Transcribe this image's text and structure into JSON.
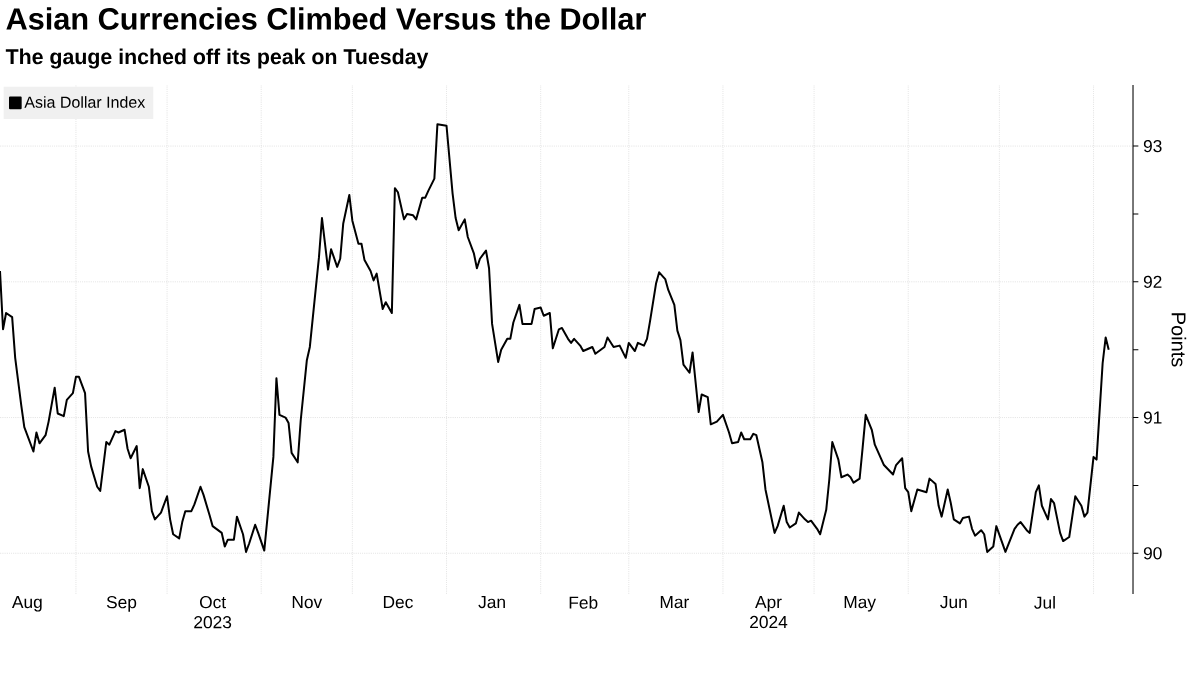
{
  "chart_data": {
    "type": "line",
    "title": "Asian Currencies Climbed Versus the Dollar",
    "subtitle": "The gauge inched off its peak on Tuesday",
    "ylabel": "Points",
    "x": [
      "2023-08-07",
      "2023-08-08",
      "2023-08-09",
      "2023-08-11",
      "2023-08-12",
      "2023-08-14",
      "2023-08-15",
      "2023-08-18",
      "2023-08-19",
      "2023-08-20",
      "2023-08-22",
      "2023-08-23",
      "2023-08-25",
      "2023-08-26",
      "2023-08-28",
      "2023-08-29",
      "2023-08-31",
      "2023-09-01",
      "2023-09-02",
      "2023-09-04",
      "2023-09-05",
      "2023-09-06",
      "2023-09-08",
      "2023-09-09",
      "2023-09-11",
      "2023-09-12",
      "2023-09-14",
      "2023-09-15",
      "2023-09-17",
      "2023-09-18",
      "2023-09-19",
      "2023-09-21",
      "2023-09-22",
      "2023-09-23",
      "2023-09-25",
      "2023-09-26",
      "2023-09-27",
      "2023-09-29",
      "2023-10-01",
      "2023-10-02",
      "2023-10-03",
      "2023-10-05",
      "2023-10-06",
      "2023-10-07",
      "2023-10-09",
      "2023-10-10",
      "2023-10-12",
      "2023-10-13",
      "2023-10-15",
      "2023-10-16",
      "2023-10-19",
      "2023-10-20",
      "2023-10-21",
      "2023-10-23",
      "2023-10-24",
      "2023-10-26",
      "2023-10-27",
      "2023-10-28",
      "2023-10-30",
      "2023-10-31",
      "2023-11-02",
      "2023-11-05",
      "2023-11-06",
      "2023-11-07",
      "2023-11-09",
      "2023-11-10",
      "2023-11-11",
      "2023-11-13",
      "2023-11-14",
      "2023-11-16",
      "2023-11-17",
      "2023-11-18",
      "2023-11-20",
      "2023-11-21",
      "2023-11-23",
      "2023-11-24",
      "2023-11-26",
      "2023-11-27",
      "2023-11-28",
      "2023-11-30",
      "2023-12-01",
      "2023-12-03",
      "2023-12-04",
      "2023-12-05",
      "2023-12-07",
      "2023-12-08",
      "2023-12-09",
      "2023-12-11",
      "2023-12-12",
      "2023-12-14",
      "2023-12-15",
      "2023-12-16",
      "2023-12-18",
      "2023-12-19",
      "2023-12-21",
      "2023-12-22",
      "2023-12-24",
      "2023-12-25",
      "2023-12-26",
      "2023-12-28",
      "2023-12-29",
      "2024-01-01",
      "2024-01-03",
      "2024-01-04",
      "2024-01-05",
      "2024-01-07",
      "2024-01-08",
      "2024-01-10",
      "2024-01-11",
      "2024-01-12",
      "2024-01-14",
      "2024-01-15",
      "2024-01-16",
      "2024-01-18",
      "2024-01-19",
      "2024-01-21",
      "2024-01-22",
      "2024-01-23",
      "2024-01-25",
      "2024-01-26",
      "2024-01-29",
      "2024-01-30",
      "2024-02-01",
      "2024-02-02",
      "2024-02-04",
      "2024-02-05",
      "2024-02-07",
      "2024-02-08",
      "2024-02-10",
      "2024-02-11",
      "2024-02-12",
      "2024-02-14",
      "2024-02-15",
      "2024-02-18",
      "2024-02-19",
      "2024-02-22",
      "2024-02-23",
      "2024-02-25",
      "2024-02-27",
      "2024-02-29",
      "2024-03-01",
      "2024-03-03",
      "2024-03-04",
      "2024-03-06",
      "2024-03-07",
      "2024-03-08",
      "2024-03-10",
      "2024-03-11",
      "2024-03-13",
      "2024-03-14",
      "2024-03-16",
      "2024-03-17",
      "2024-03-18",
      "2024-03-19",
      "2024-03-21",
      "2024-03-22",
      "2024-03-24",
      "2024-03-25",
      "2024-03-27",
      "2024-03-28",
      "2024-03-30",
      "2024-04-01",
      "2024-04-03",
      "2024-04-04",
      "2024-04-06",
      "2024-04-07",
      "2024-04-08",
      "2024-04-10",
      "2024-04-11",
      "2024-04-12",
      "2024-04-14",
      "2024-04-15",
      "2024-04-18",
      "2024-04-19",
      "2024-04-21",
      "2024-04-22",
      "2024-04-23",
      "2024-04-25",
      "2024-04-26",
      "2024-04-28",
      "2024-04-29",
      "2024-04-30",
      "2024-05-02",
      "2024-05-03",
      "2024-05-05",
      "2024-05-06",
      "2024-05-07",
      "2024-05-09",
      "2024-05-10",
      "2024-05-12",
      "2024-05-13",
      "2024-05-14",
      "2024-05-16",
      "2024-05-17",
      "2024-05-18",
      "2024-05-20",
      "2024-05-21",
      "2024-05-23",
      "2024-05-24",
      "2024-05-27",
      "2024-05-28",
      "2024-05-30",
      "2024-05-31",
      "2024-06-01",
      "2024-06-02",
      "2024-06-04",
      "2024-06-07",
      "2024-06-08",
      "2024-06-10",
      "2024-06-11",
      "2024-06-12",
      "2024-06-14",
      "2024-06-15",
      "2024-06-16",
      "2024-06-18",
      "2024-06-19",
      "2024-06-21",
      "2024-06-22",
      "2024-06-23",
      "2024-06-25",
      "2024-06-26",
      "2024-06-27",
      "2024-06-29",
      "2024-06-30",
      "2024-07-03",
      "2024-07-06",
      "2024-07-07",
      "2024-07-08",
      "2024-07-10",
      "2024-07-11",
      "2024-07-13",
      "2024-07-14",
      "2024-07-15",
      "2024-07-17",
      "2024-07-18",
      "2024-07-19",
      "2024-07-21",
      "2024-07-22",
      "2024-07-24",
      "2024-07-25",
      "2024-07-26",
      "2024-07-28",
      "2024-07-29",
      "2024-07-30",
      "2024-08-01",
      "2024-08-02",
      "2024-08-04",
      "2024-08-05",
      "2024-08-06"
    ],
    "series": [
      {
        "name": "Asia Dollar Index",
        "color": "#000000",
        "values": [
          92.08,
          91.65,
          91.77,
          91.74,
          91.44,
          91.09,
          90.93,
          90.75,
          90.89,
          90.81,
          90.87,
          90.97,
          91.22,
          91.03,
          91.01,
          91.13,
          91.18,
          91.3,
          91.3,
          91.18,
          90.75,
          90.64,
          90.49,
          90.46,
          90.82,
          90.8,
          90.9,
          90.89,
          90.91,
          90.77,
          90.7,
          90.79,
          90.48,
          90.62,
          90.49,
          90.31,
          90.25,
          90.3,
          90.42,
          90.25,
          90.14,
          90.11,
          90.23,
          90.31,
          90.31,
          90.36,
          90.49,
          90.43,
          90.28,
          90.2,
          90.15,
          90.05,
          90.1,
          90.1,
          90.27,
          90.14,
          90.01,
          90.07,
          90.21,
          90.15,
          90.02,
          90.71,
          91.29,
          91.02,
          91.0,
          90.96,
          90.74,
          90.67,
          90.98,
          91.42,
          91.52,
          91.74,
          92.18,
          92.47,
          92.09,
          92.24,
          92.11,
          92.17,
          92.43,
          92.64,
          92.45,
          92.28,
          92.28,
          92.16,
          92.08,
          92.01,
          92.06,
          91.8,
          91.85,
          91.77,
          92.69,
          92.66,
          92.46,
          92.5,
          92.49,
          92.46,
          92.62,
          92.62,
          92.67,
          92.76,
          93.16,
          93.15,
          92.65,
          92.47,
          92.38,
          92.46,
          92.33,
          92.21,
          92.1,
          92.17,
          92.23,
          92.1,
          91.69,
          91.41,
          91.5,
          91.58,
          91.58,
          91.7,
          91.83,
          91.69,
          91.69,
          91.8,
          91.81,
          91.75,
          91.77,
          91.51,
          91.65,
          91.66,
          91.58,
          91.55,
          91.58,
          91.53,
          91.49,
          91.52,
          91.47,
          91.52,
          91.59,
          91.52,
          91.53,
          91.44,
          91.55,
          91.49,
          91.55,
          91.53,
          91.58,
          91.71,
          91.99,
          92.07,
          92.02,
          91.94,
          91.83,
          91.64,
          91.57,
          91.39,
          91.33,
          91.48,
          91.04,
          91.17,
          91.15,
          90.95,
          90.97,
          91.02,
          90.89,
          90.81,
          90.82,
          90.89,
          90.84,
          90.84,
          90.88,
          90.87,
          90.67,
          90.47,
          90.15,
          90.2,
          90.35,
          90.23,
          90.19,
          90.22,
          90.3,
          90.25,
          90.23,
          90.24,
          90.18,
          90.14,
          90.32,
          90.54,
          90.82,
          90.69,
          90.56,
          90.58,
          90.56,
          90.52,
          90.55,
          90.78,
          91.02,
          90.91,
          90.8,
          90.7,
          90.65,
          90.58,
          90.65,
          90.7,
          90.48,
          90.45,
          90.31,
          90.47,
          90.45,
          90.55,
          90.51,
          90.35,
          90.27,
          90.47,
          90.37,
          90.25,
          90.22,
          90.26,
          90.27,
          90.18,
          90.13,
          90.17,
          90.14,
          90.01,
          90.05,
          90.2,
          90.01,
          90.18,
          90.21,
          90.23,
          90.17,
          90.15,
          90.45,
          90.5,
          90.35,
          90.25,
          90.4,
          90.37,
          90.15,
          90.09,
          90.12,
          90.27,
          90.42,
          90.35,
          90.27,
          90.3,
          90.71,
          90.69,
          91.4,
          91.59,
          91.5
        ]
      }
    ],
    "xlim": [
      "2023-08-07",
      "2024-08-14"
    ],
    "xticks": [
      {
        "value": "2023-09-01",
        "label": null
      },
      {
        "value": "2023-10-01",
        "label": null
      },
      {
        "value": "2023-11-01",
        "label": null
      },
      {
        "value": "2023-12-01",
        "label": null
      },
      {
        "value": "2024-01-01",
        "label": null
      },
      {
        "value": "2024-02-01",
        "label": null
      },
      {
        "value": "2024-03-01",
        "label": null
      },
      {
        "value": "2024-04-01",
        "label": null
      },
      {
        "value": "2024-05-01",
        "label": null
      },
      {
        "value": "2024-06-01",
        "label": null
      },
      {
        "value": "2024-07-01",
        "label": null
      },
      {
        "value": "2024-08-01",
        "label": null
      },
      {
        "value": "2023-08-16",
        "label": "Aug"
      },
      {
        "value": "2023-09-16",
        "label": "Sep"
      },
      {
        "value": "2023-10-16",
        "label": "Oct 2023"
      },
      {
        "value": "2023-11-16",
        "label": "Nov"
      },
      {
        "value": "2023-12-16",
        "label": "Dec"
      },
      {
        "value": "2024-01-16",
        "label": "Jan"
      },
      {
        "value": "2024-02-15",
        "label": "Feb"
      },
      {
        "value": "2024-03-16",
        "label": "Mar"
      },
      {
        "value": "2024-04-16",
        "label": "Apr 2024"
      },
      {
        "value": "2024-05-16",
        "label": "May"
      },
      {
        "value": "2024-06-16",
        "label": "Jun"
      },
      {
        "value": "2024-07-16",
        "label": "Jul"
      }
    ],
    "ylim": [
      89.7,
      93.45
    ],
    "yticks": [
      90,
      {
        "value": 90.5,
        "label": null
      },
      91,
      {
        "value": 91.5,
        "label": null
      },
      92,
      {
        "value": 92.5,
        "label": null
      },
      93
    ],
    "grid": true,
    "legend": "top left"
  }
}
